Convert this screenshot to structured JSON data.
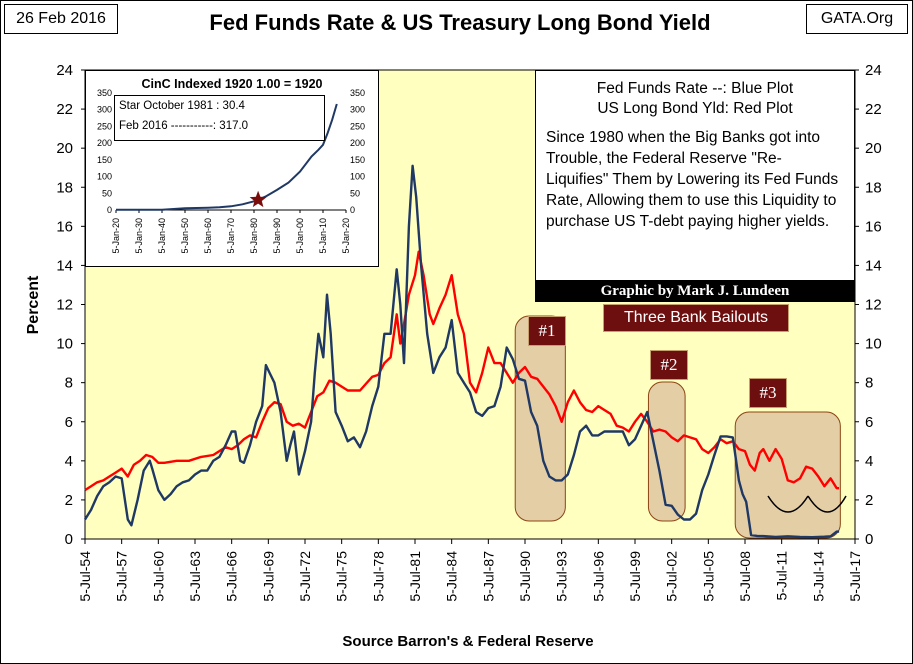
{
  "header": {
    "date": "26 Feb 2016",
    "title": "Fed Funds Rate & US Treasury Long Bond Yield",
    "source_site": "GATA.Org"
  },
  "legend": {
    "blue_line": "Fed Funds Rate --:  Blue Plot",
    "red_line": "US Long Bond Yld:  Red Plot",
    "note": "Since 1980 when the Big Banks got into Trouble, the Federal Reserve \"Re-Liquifies\" Them by Lowering its Fed Funds Rate, Allowing them to use this Liquidity to purchase US T-debt paying higher  yields."
  },
  "credit": "Graphic by Mark J. Lundeen",
  "bailouts": {
    "label": "Three Bank Bailouts",
    "tags": [
      "#1",
      "#2",
      "#3"
    ],
    "periods": [
      {
        "tag": "#1",
        "start": 1989.7,
        "end": 1993.8
      },
      {
        "tag": "#2",
        "start": 2000.6,
        "end": 2003.6
      },
      {
        "tag": "#3",
        "start": 2007.7,
        "end": 2016.3
      }
    ]
  },
  "inset": {
    "title": "CinC Indexed 1920     1.00 = 1920",
    "note_line1": "Star October 1981 :  30.4",
    "note_line2": "Feb 2016 -----------: 317.0"
  },
  "colors": {
    "plot_bg": "#ffffc0",
    "fed_funds": "#1f3864",
    "long_bond": "#ff0000",
    "bailout_fill": "#d9b99b",
    "bailout_border": "#8b4513",
    "bailout_tag": "#6e0f0f",
    "star": "#7b0c0c"
  },
  "chart_data": [
    {
      "type": "line",
      "title": "Fed Funds Rate & US Treasury Long Bond Yield",
      "xlabel": "Source Barron's & Federal Reserve",
      "ylabel": "Percent",
      "xlim": [
        1954.5,
        2017.5
      ],
      "ylim": [
        0,
        24
      ],
      "yticks": [
        0,
        2,
        4,
        6,
        8,
        10,
        12,
        14,
        16,
        18,
        20,
        22,
        24
      ],
      "xtick_labels": [
        "5-Jul-54",
        "5-Jul-57",
        "5-Jul-60",
        "5-Jul-63",
        "5-Jul-66",
        "5-Jul-69",
        "5-Jul-72",
        "5-Jul-75",
        "5-Jul-78",
        "5-Jul-81",
        "5-Jul-84",
        "5-Jul-87",
        "5-Jul-90",
        "5-Jul-93",
        "5-Jul-96",
        "5-Jul-99",
        "5-Jul-02",
        "5-Jul-05",
        "5-Jul-08",
        "5-Jul-11",
        "5-Jul-14",
        "5-Jul-17"
      ],
      "xtick_values": [
        1954.5,
        1957.5,
        1960.5,
        1963.5,
        1966.5,
        1969.5,
        1972.5,
        1975.5,
        1978.5,
        1981.5,
        1984.5,
        1987.5,
        1990.5,
        1993.5,
        1996.5,
        1999.5,
        2002.5,
        2005.5,
        2008.5,
        2011.5,
        2014.5,
        2017.5
      ],
      "grid": false,
      "series": [
        {
          "name": "Fed Funds Rate",
          "color": "blue",
          "x": [
            1954.5,
            1955.0,
            1955.5,
            1956.0,
            1956.5,
            1957.0,
            1957.5,
            1958.0,
            1958.3,
            1958.8,
            1959.3,
            1959.8,
            1960.0,
            1960.5,
            1961.0,
            1961.5,
            1962.0,
            1962.5,
            1963.0,
            1963.5,
            1964.0,
            1964.5,
            1965.0,
            1965.5,
            1966.0,
            1966.5,
            1966.8,
            1967.2,
            1967.5,
            1968.0,
            1968.5,
            1969.0,
            1969.3,
            1969.6,
            1970.0,
            1970.5,
            1971.0,
            1971.3,
            1971.6,
            1972.0,
            1972.5,
            1973.0,
            1973.3,
            1973.6,
            1974.0,
            1974.3,
            1974.6,
            1975.0,
            1975.5,
            1976.0,
            1976.5,
            1977.0,
            1977.5,
            1978.0,
            1978.5,
            1979.0,
            1979.5,
            1980.0,
            1980.3,
            1980.6,
            1981.0,
            1981.3,
            1981.6,
            1982.0,
            1982.5,
            1983.0,
            1983.5,
            1984.0,
            1984.5,
            1985.0,
            1985.5,
            1986.0,
            1986.5,
            1987.0,
            1987.5,
            1988.0,
            1988.5,
            1989.0,
            1989.5,
            1990.0,
            1990.5,
            1991.0,
            1991.5,
            1992.0,
            1992.5,
            1993.0,
            1993.5,
            1994.0,
            1994.5,
            1995.0,
            1995.5,
            1996.0,
            1996.5,
            1997.0,
            1997.5,
            1998.0,
            1998.5,
            1999.0,
            1999.5,
            2000.0,
            2000.5,
            2001.0,
            2001.5,
            2002.0,
            2002.5,
            2003.0,
            2003.5,
            2004.0,
            2004.5,
            2005.0,
            2005.5,
            2006.0,
            2006.5,
            2007.0,
            2007.5,
            2008.0,
            2008.3,
            2008.6,
            2009.0,
            2009.5,
            2010.0,
            2011.0,
            2012.0,
            2013.0,
            2014.0,
            2015.0,
            2015.5,
            2016.0,
            2016.2
          ],
          "values": [
            1.0,
            1.5,
            2.2,
            2.7,
            2.9,
            3.2,
            3.1,
            1.0,
            0.7,
            2.0,
            3.5,
            4.0,
            3.6,
            2.5,
            2.0,
            2.3,
            2.7,
            2.9,
            3.0,
            3.3,
            3.5,
            3.5,
            4.0,
            4.2,
            4.8,
            5.5,
            5.5,
            4.0,
            3.9,
            4.8,
            6.0,
            6.8,
            8.9,
            8.5,
            8.0,
            6.5,
            4.0,
            4.8,
            5.5,
            3.3,
            4.5,
            6.0,
            8.5,
            10.5,
            9.3,
            12.5,
            10.5,
            6.5,
            5.8,
            5.0,
            5.2,
            4.7,
            5.5,
            6.8,
            7.8,
            10.5,
            10.5,
            13.8,
            12.0,
            9.0,
            16.0,
            19.1,
            17.5,
            14.0,
            10.5,
            8.5,
            9.3,
            9.8,
            11.2,
            8.5,
            8.0,
            7.5,
            6.5,
            6.3,
            6.7,
            6.8,
            7.8,
            9.8,
            9.2,
            8.2,
            8.1,
            6.5,
            5.8,
            4.0,
            3.2,
            3.0,
            3.0,
            3.3,
            4.3,
            5.5,
            5.8,
            5.3,
            5.3,
            5.5,
            5.5,
            5.5,
            5.5,
            4.8,
            5.1,
            5.8,
            6.5,
            5.0,
            3.5,
            1.75,
            1.7,
            1.25,
            1.0,
            1.0,
            1.3,
            2.5,
            3.3,
            4.3,
            5.25,
            5.25,
            5.2,
            3.0,
            2.3,
            1.9,
            0.2,
            0.16,
            0.15,
            0.1,
            0.14,
            0.1,
            0.09,
            0.12,
            0.14,
            0.38,
            0.38
          ]
        },
        {
          "name": "US Long Bond Yield",
          "color": "red",
          "x": [
            1954.5,
            1955.0,
            1955.5,
            1956.0,
            1956.5,
            1957.0,
            1957.5,
            1958.0,
            1958.5,
            1959.0,
            1959.5,
            1960.0,
            1960.5,
            1961.0,
            1962.0,
            1963.0,
            1964.0,
            1965.0,
            1966.0,
            1966.5,
            1967.0,
            1967.5,
            1968.0,
            1968.5,
            1969.0,
            1969.5,
            1970.0,
            1970.5,
            1971.0,
            1971.5,
            1972.0,
            1972.5,
            1973.0,
            1973.5,
            1974.0,
            1974.5,
            1975.0,
            1976.0,
            1977.0,
            1978.0,
            1978.5,
            1979.0,
            1979.5,
            1980.0,
            1980.3,
            1980.6,
            1981.0,
            1981.5,
            1981.8,
            1982.2,
            1982.7,
            1983.0,
            1983.5,
            1984.0,
            1984.5,
            1985.0,
            1985.5,
            1986.0,
            1986.5,
            1987.0,
            1987.5,
            1988.0,
            1988.5,
            1989.0,
            1989.5,
            1990.0,
            1990.5,
            1991.0,
            1991.5,
            1992.0,
            1992.5,
            1993.0,
            1993.5,
            1994.0,
            1994.5,
            1995.0,
            1995.5,
            1996.0,
            1996.5,
            1997.0,
            1997.5,
            1998.0,
            1998.5,
            1999.0,
            1999.5,
            2000.0,
            2000.5,
            2001.0,
            2001.5,
            2002.0,
            2002.5,
            2003.0,
            2003.5,
            2004.0,
            2004.5,
            2005.0,
            2005.5,
            2006.0,
            2006.5,
            2007.0,
            2007.5,
            2008.0,
            2008.5,
            2008.9,
            2009.3,
            2009.7,
            2010.0,
            2010.5,
            2011.0,
            2011.5,
            2012.0,
            2012.5,
            2013.0,
            2013.5,
            2014.0,
            2014.5,
            2015.0,
            2015.5,
            2016.0,
            2016.2
          ],
          "values": [
            2.5,
            2.7,
            2.9,
            3.0,
            3.2,
            3.4,
            3.6,
            3.2,
            3.8,
            4.0,
            4.3,
            4.2,
            3.9,
            3.9,
            4.0,
            4.0,
            4.2,
            4.3,
            4.7,
            4.6,
            4.8,
            5.1,
            5.3,
            5.2,
            6.0,
            6.7,
            7.0,
            6.9,
            6.0,
            5.8,
            5.9,
            5.7,
            6.5,
            7.3,
            7.5,
            8.1,
            8.0,
            7.6,
            7.6,
            8.3,
            8.4,
            9.0,
            9.3,
            11.5,
            10.0,
            11.0,
            12.5,
            13.5,
            14.7,
            13.5,
            11.5,
            11.0,
            11.8,
            12.5,
            13.5,
            11.5,
            10.5,
            8.0,
            7.5,
            8.5,
            9.8,
            9.0,
            9.0,
            8.5,
            8.0,
            8.5,
            8.8,
            8.3,
            8.2,
            7.8,
            7.4,
            6.8,
            6.0,
            7.0,
            7.6,
            7.0,
            6.6,
            6.5,
            6.8,
            6.6,
            6.4,
            5.8,
            5.7,
            5.5,
            6.0,
            6.4,
            6.0,
            5.5,
            5.6,
            5.5,
            5.2,
            5.0,
            5.3,
            5.2,
            5.1,
            4.6,
            4.4,
            4.7,
            5.1,
            4.9,
            5.0,
            4.6,
            4.5,
            3.8,
            3.5,
            4.4,
            4.6,
            4.0,
            4.6,
            4.1,
            3.0,
            2.9,
            3.1,
            3.7,
            3.6,
            3.2,
            2.7,
            3.1,
            2.6,
            2.6
          ]
        }
      ]
    },
    {
      "type": "line",
      "title": "CinC Indexed 1920     1.00 = 1920",
      "xlim": [
        1920,
        2020
      ],
      "ylim": [
        0,
        350
      ],
      "yticks": [
        0,
        50,
        100,
        150,
        200,
        250,
        300,
        350
      ],
      "xtick_labels": [
        "5-Jan-20",
        "5-Jan-30",
        "5-Jan-40",
        "5-Jan-50",
        "5-Jan-60",
        "5-Jan-70",
        "5-Jan-80",
        "5-Jan-90",
        "5-Jan-00",
        "5-Jan-10",
        "5-Jan-20"
      ],
      "xtick_values": [
        1920,
        1930,
        1940,
        1950,
        1960,
        1970,
        1980,
        1990,
        2000,
        2010,
        2020
      ],
      "series": [
        {
          "name": "CinC Index",
          "x": [
            1920,
            1930,
            1935,
            1940,
            1945,
            1950,
            1955,
            1960,
            1965,
            1970,
            1975,
            1980,
            1981.8,
            1985,
            1990,
            1995,
            2000,
            2005,
            2008,
            2010,
            2012,
            2014,
            2016
          ],
          "values": [
            1,
            1,
            1,
            1,
            3,
            5,
            6,
            7,
            8,
            11,
            17,
            26,
            30.4,
            40,
            60,
            82,
            115,
            160,
            180,
            195,
            230,
            270,
            317
          ]
        }
      ],
      "annotations": [
        {
          "label": "Star",
          "x": 1981.8,
          "y": 30.4
        }
      ]
    }
  ]
}
